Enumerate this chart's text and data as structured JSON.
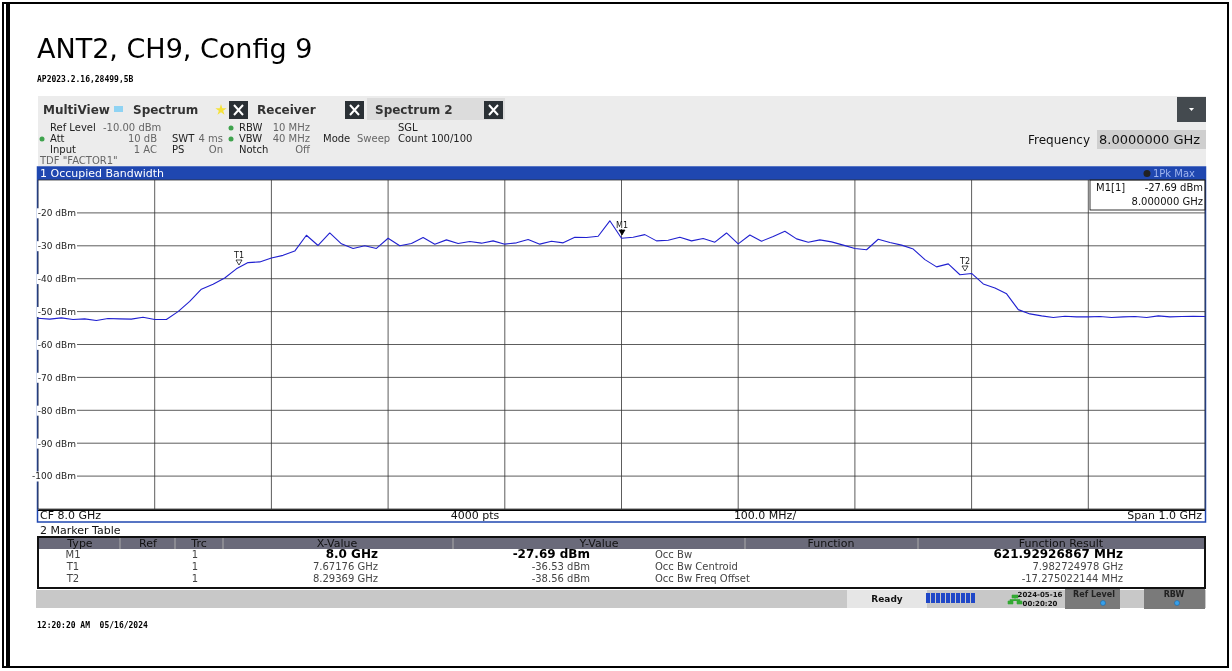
{
  "chart_data": {
    "type": "line",
    "title": "ANT2, CH9, Config 9",
    "categories": [
      null,
      null,
      null,
      null,
      null,
      null,
      null,
      null,
      null,
      null,
      null,
      null,
      null,
      null,
      null,
      null,
      null,
      null,
      null,
      null,
      null,
      null,
      null,
      null,
      null,
      null,
      null,
      null,
      null,
      null,
      null,
      null,
      null,
      null,
      null,
      null,
      null,
      null,
      null,
      null,
      null,
      null,
      null,
      null,
      null,
      null,
      null,
      null,
      null,
      null,
      null,
      null,
      null,
      null,
      null,
      null,
      null,
      null,
      null,
      null,
      null,
      null,
      null,
      null,
      null,
      null,
      null,
      null,
      null,
      null,
      null,
      null,
      null,
      null,
      null,
      null,
      null,
      null,
      null,
      null,
      null,
      null,
      null,
      null,
      null,
      null,
      null,
      null,
      null,
      null,
      null,
      null,
      null,
      null,
      null,
      null,
      null,
      null,
      null,
      null,
      null
    ],
    "series": [
      {
        "color": "#2020d0",
        "values": [
          -52.0,
          -52.3,
          -51.9,
          -52.4,
          -52.2,
          -52.7,
          -52.1,
          -52.2,
          -52.3,
          -51.7,
          -52.4,
          -52.4,
          -50.0,
          -46.9,
          -43.2,
          -41.7,
          -39.8,
          -37.0,
          -35.1,
          -34.9,
          -33.7,
          -32.9,
          -31.6,
          -26.8,
          -29.9,
          -26.1,
          -29.4,
          -30.8,
          -30.0,
          -30.8,
          -27.7,
          -30.0,
          -29.3,
          -27.5,
          -29.5,
          -28.2,
          -29.3,
          -28.7,
          -29.2,
          -28.5,
          -29.5,
          -29.1,
          -28.1,
          -29.5,
          -28.6,
          -29.1,
          -27.4,
          -27.5,
          -27.1,
          -22.4,
          -27.7,
          -27.4,
          -26.6,
          -28.5,
          -28.3,
          -27.4,
          -28.5,
          -27.8,
          -28.9,
          -26.1,
          -29.4,
          -26.7,
          -28.6,
          -27.2,
          -25.6,
          -27.9,
          -28.9,
          -28.2,
          -28.8,
          -29.8,
          -30.8,
          -31.2,
          -28.0,
          -29.0,
          -29.8,
          -31.0,
          -34.2,
          -36.4,
          -35.5,
          -38.8,
          -38.4,
          -41.6,
          -42.8,
          -44.6,
          -49.4,
          -50.7,
          -51.3,
          -51.8,
          -51.4,
          -51.6,
          -51.6,
          -51.5,
          -51.8,
          -51.6,
          -51.5,
          -51.8,
          -51.3,
          -51.6,
          -51.5,
          -51.4,
          -51.5
        ]
      }
    ],
    "ylim": [
      -110,
      -10
    ],
    "yticks": [
      {
        "value": -110,
        "label": null
      },
      {
        "value": -100,
        "label": "-100 dBm"
      },
      {
        "value": -90,
        "label": "-90 dBm"
      },
      {
        "value": -80,
        "label": "-80 dBm"
      },
      {
        "value": -70,
        "label": "-70 dBm"
      },
      {
        "value": -60,
        "label": "-60 dBm"
      },
      {
        "value": -50,
        "label": "-50 dBm"
      },
      {
        "value": -40,
        "label": "-40 dBm"
      },
      {
        "value": -30,
        "label": "-30 dBm"
      },
      {
        "value": -20,
        "label": "-20 dBm"
      },
      {
        "value": -10,
        "label": null
      }
    ],
    "tick_labels": "y",
    "grid": true,
    "marker": "none",
    "line_style": "solid",
    "annotations": [
      "AP2023.2.16,28499,5B",
      "MultiView",
      "Spectrum",
      "Receiver",
      "Spectrum 2",
      "Ref Level",
      "-10.00 dBm",
      "Att",
      "10 dB",
      "Input",
      "1 AC",
      "SWT",
      "4 ms",
      "PS",
      "On",
      "RBW",
      "10 MHz",
      "VBW",
      "40 MHz",
      "Notch",
      "Off",
      "Mode",
      "Sweep",
      "SGL",
      "Count 100/100",
      "TDF \"FACTOR1\"",
      "Frequency",
      "8.0000000 GHz",
      "1 Occupied Bandwidth",
      "1Pk Max",
      "M1[1]",
      "-27.69 dBm",
      "8.000000 GHz",
      "CF 8.0 GHz",
      "4000 pts",
      "100.0 MHz/",
      "Span 1.0 GHz",
      "2 Marker Table",
      "Type",
      "Ref",
      "Trc",
      "X-Value",
      "Y-Value",
      "Function",
      "Function Result",
      "M1",
      "1",
      "8.0 GHz",
      "-27.69 dBm",
      "Occ Bw",
      "621.92926867 MHz",
      "T1",
      "1",
      "7.67176 GHz",
      "-36.53 dBm",
      "Occ Bw Centroid",
      "7.982724978 GHz",
      "T2",
      "1",
      "8.29369 GHz",
      "-38.56 dBm",
      "Occ Bw Freq Offset",
      "-17.275022144 MHz",
      "Ready",
      "2024-05-16",
      "00:20:20",
      "Ref Level",
      "RBW",
      "12:20:20 AM  05/16/2024",
      "M1",
      "T1",
      "T2"
    ]
  }
}
